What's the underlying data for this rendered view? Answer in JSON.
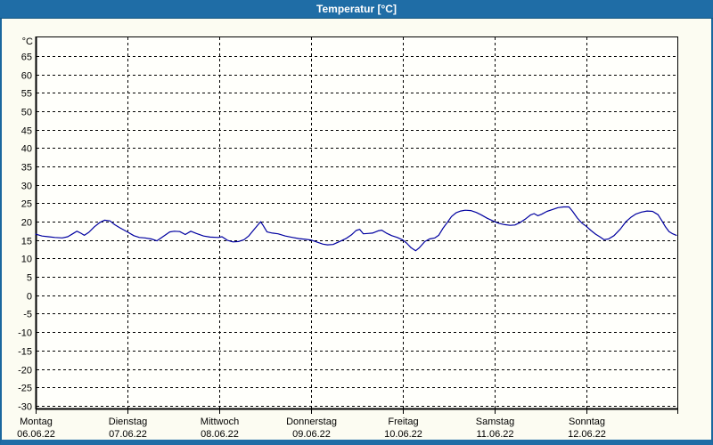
{
  "window": {
    "title": "Temperatur [°C]"
  },
  "colors": {
    "titlebar_bg": "#1f6da6",
    "window_border": "#1a679e",
    "content_bg": "#fcfcf2",
    "plot_bg": "#fffffb",
    "grid": "#000000",
    "axis": "#000000",
    "line": "#0000a0",
    "title_text": "#ffffff"
  },
  "chart_data": {
    "type": "line",
    "title": "Temperatur [°C]",
    "ylabel": "°C",
    "ylim": [
      -31,
      70.3
    ],
    "y_ticks": [
      65,
      60,
      55,
      50,
      45,
      40,
      35,
      30,
      25,
      20,
      15,
      10,
      5,
      0,
      -5,
      -10,
      -15,
      -20,
      -25,
      -30
    ],
    "grid": "dashed",
    "legend_position": "none",
    "x_categories": [
      {
        "day": "Montag",
        "date": "06.06.22"
      },
      {
        "day": "Dienstag",
        "date": "07.06.22"
      },
      {
        "day": "Mittwoch",
        "date": "08.06.22"
      },
      {
        "day": "Donnerstag",
        "date": "09.06.22"
      },
      {
        "day": "Freitag",
        "date": "10.06.22"
      },
      {
        "day": "Samstag",
        "date": "11.06.22"
      },
      {
        "day": "Sonntag",
        "date": "12.06.22"
      }
    ],
    "x_unit": "days_from_monday",
    "series": [
      {
        "name": "Temperatur",
        "color": "#0000a0",
        "points": [
          [
            0.0,
            16.6
          ],
          [
            0.07,
            16.1
          ],
          [
            0.14,
            15.9
          ],
          [
            0.21,
            15.7
          ],
          [
            0.29,
            15.6
          ],
          [
            0.35,
            15.9
          ],
          [
            0.41,
            16.8
          ],
          [
            0.45,
            17.4
          ],
          [
            0.49,
            16.9
          ],
          [
            0.53,
            16.3
          ],
          [
            0.58,
            17.1
          ],
          [
            0.64,
            18.6
          ],
          [
            0.7,
            19.8
          ],
          [
            0.75,
            20.4
          ],
          [
            0.81,
            20.2
          ],
          [
            0.86,
            19.2
          ],
          [
            0.92,
            18.3
          ],
          [
            1.0,
            17.2
          ],
          [
            1.07,
            16.2
          ],
          [
            1.13,
            15.7
          ],
          [
            1.19,
            15.6
          ],
          [
            1.26,
            15.3
          ],
          [
            1.32,
            14.8
          ],
          [
            1.39,
            16.0
          ],
          [
            1.46,
            17.2
          ],
          [
            1.51,
            17.4
          ],
          [
            1.57,
            17.3
          ],
          [
            1.63,
            16.5
          ],
          [
            1.69,
            17.4
          ],
          [
            1.75,
            16.8
          ],
          [
            1.83,
            16.1
          ],
          [
            1.9,
            15.8
          ],
          [
            1.99,
            15.7
          ],
          [
            2.03,
            15.9
          ],
          [
            2.09,
            14.9
          ],
          [
            2.15,
            14.5
          ],
          [
            2.21,
            14.6
          ],
          [
            2.27,
            15.1
          ],
          [
            2.32,
            16.1
          ],
          [
            2.37,
            17.6
          ],
          [
            2.42,
            19.1
          ],
          [
            2.45,
            20.0
          ],
          [
            2.48,
            18.9
          ],
          [
            2.52,
            17.2
          ],
          [
            2.58,
            16.9
          ],
          [
            2.64,
            16.7
          ],
          [
            2.72,
            16.1
          ],
          [
            2.8,
            15.7
          ],
          [
            2.87,
            15.4
          ],
          [
            2.94,
            15.2
          ],
          [
            3.0,
            15.0
          ],
          [
            3.07,
            14.4
          ],
          [
            3.13,
            13.9
          ],
          [
            3.18,
            13.7
          ],
          [
            3.24,
            13.8
          ],
          [
            3.31,
            14.6
          ],
          [
            3.38,
            15.4
          ],
          [
            3.44,
            16.4
          ],
          [
            3.49,
            17.6
          ],
          [
            3.53,
            17.9
          ],
          [
            3.57,
            16.7
          ],
          [
            3.62,
            16.8
          ],
          [
            3.67,
            16.9
          ],
          [
            3.73,
            17.5
          ],
          [
            3.77,
            17.7
          ],
          [
            3.82,
            16.9
          ],
          [
            3.88,
            16.2
          ],
          [
            3.94,
            15.7
          ],
          [
            4.0,
            15.0
          ],
          [
            4.04,
            14.2
          ],
          [
            4.09,
            12.9
          ],
          [
            4.14,
            12.1
          ],
          [
            4.18,
            12.9
          ],
          [
            4.24,
            14.6
          ],
          [
            4.29,
            15.3
          ],
          [
            4.35,
            15.6
          ],
          [
            4.39,
            16.3
          ],
          [
            4.44,
            18.3
          ],
          [
            4.49,
            20.0
          ],
          [
            4.53,
            21.4
          ],
          [
            4.58,
            22.4
          ],
          [
            4.63,
            22.9
          ],
          [
            4.68,
            23.1
          ],
          [
            4.74,
            23.0
          ],
          [
            4.8,
            22.5
          ],
          [
            4.85,
            21.9
          ],
          [
            4.92,
            20.9
          ],
          [
            5.0,
            20.0
          ],
          [
            5.05,
            19.5
          ],
          [
            5.11,
            19.2
          ],
          [
            5.17,
            19.0
          ],
          [
            5.22,
            19.1
          ],
          [
            5.28,
            19.8
          ],
          [
            5.34,
            20.8
          ],
          [
            5.39,
            21.8
          ],
          [
            5.43,
            22.2
          ],
          [
            5.47,
            21.6
          ],
          [
            5.51,
            22.0
          ],
          [
            5.57,
            22.8
          ],
          [
            5.63,
            23.3
          ],
          [
            5.69,
            23.8
          ],
          [
            5.75,
            24.0
          ],
          [
            5.81,
            24.0
          ],
          [
            5.85,
            22.8
          ],
          [
            5.9,
            21.0
          ],
          [
            5.95,
            19.6
          ],
          [
            6.0,
            18.7
          ],
          [
            6.05,
            17.6
          ],
          [
            6.1,
            16.6
          ],
          [
            6.15,
            15.8
          ],
          [
            6.19,
            15.1
          ],
          [
            6.24,
            15.3
          ],
          [
            6.3,
            16.2
          ],
          [
            6.37,
            18.0
          ],
          [
            6.43,
            20.0
          ],
          [
            6.49,
            21.3
          ],
          [
            6.54,
            22.1
          ],
          [
            6.6,
            22.6
          ],
          [
            6.66,
            22.9
          ],
          [
            6.72,
            22.8
          ],
          [
            6.78,
            21.9
          ],
          [
            6.82,
            20.3
          ],
          [
            6.86,
            18.6
          ],
          [
            6.9,
            17.3
          ],
          [
            6.94,
            16.7
          ],
          [
            6.98,
            16.3
          ]
        ]
      }
    ]
  }
}
